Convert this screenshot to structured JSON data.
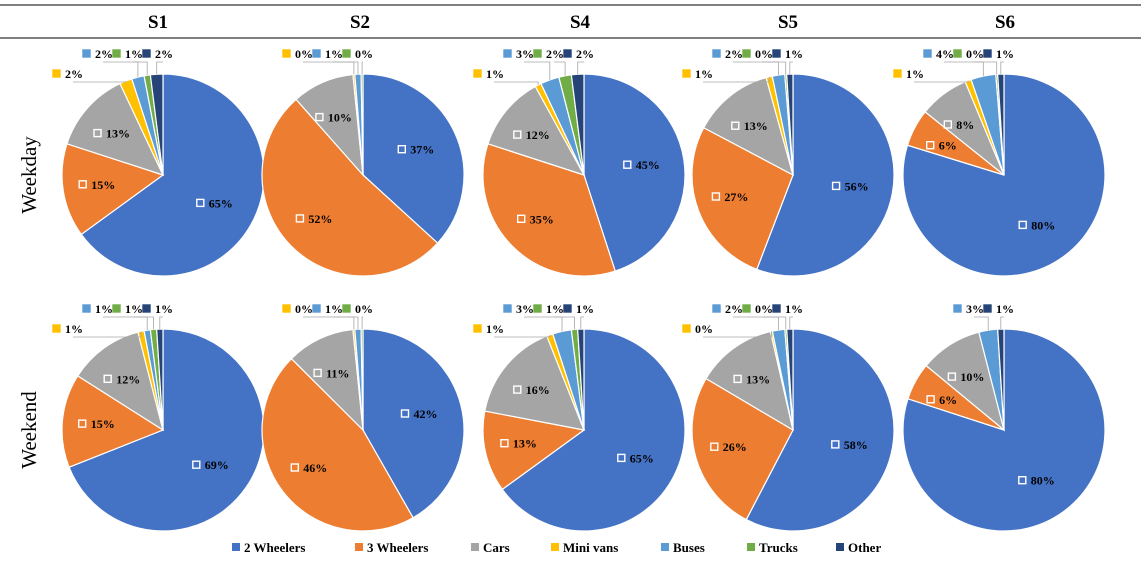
{
  "column_titles": [
    "S1",
    "S2",
    "S4",
    "S5",
    "S6"
  ],
  "row_titles": [
    "Weekday",
    "Weekend"
  ],
  "colors": {
    "2 Wheelers": "#4472C4",
    "3 Wheelers": "#ED7D31",
    "Cars": "#A5A5A5",
    "Mini vans": "#FFC000",
    "Buses": "#5B9BD5",
    "Trucks": "#70AD47",
    "Other": "#264478"
  },
  "legend": [
    "2 Wheelers",
    "3 Wheelers",
    "Cars",
    "Mini vans",
    "Buses",
    "Trucks",
    "Other"
  ],
  "chart_data": [
    {
      "type": "pie",
      "title": "S1",
      "row": "Weekday",
      "categories": [
        "2 Wheelers",
        "3 Wheelers",
        "Cars",
        "Mini vans",
        "Buses",
        "Trucks",
        "Other"
      ],
      "values": [
        65,
        15,
        13,
        2,
        2,
        1,
        2
      ],
      "labels": [
        "65%",
        "15%",
        "13%",
        "2%",
        "2%",
        "1%",
        "2%"
      ]
    },
    {
      "type": "pie",
      "title": "S2",
      "row": "Weekday",
      "categories": [
        "2 Wheelers",
        "3 Wheelers",
        "Cars",
        "Mini vans",
        "Buses",
        "Trucks",
        "Other"
      ],
      "values": [
        37,
        52,
        10,
        0.3,
        1,
        0.3,
        0
      ],
      "labels": [
        "37%",
        "52%",
        "10%",
        "0%",
        "1%",
        "0%",
        ""
      ]
    },
    {
      "type": "pie",
      "title": "S4",
      "row": "Weekday",
      "categories": [
        "2 Wheelers",
        "3 Wheelers",
        "Cars",
        "Mini vans",
        "Buses",
        "Trucks",
        "Other"
      ],
      "values": [
        45,
        35,
        12,
        1,
        3,
        2,
        2
      ],
      "labels": [
        "45%",
        "35%",
        "12%",
        "1%",
        "3%",
        "2%",
        "2%"
      ]
    },
    {
      "type": "pie",
      "title": "S5",
      "row": "Weekday",
      "categories": [
        "2 Wheelers",
        "3 Wheelers",
        "Cars",
        "Mini vans",
        "Buses",
        "Trucks",
        "Other"
      ],
      "values": [
        56,
        27,
        13,
        1,
        2,
        0.3,
        1
      ],
      "labels": [
        "56%",
        "27%",
        "13%",
        "1%",
        "2%",
        "0%",
        "1%"
      ]
    },
    {
      "type": "pie",
      "title": "S6",
      "row": "Weekday",
      "categories": [
        "2 Wheelers",
        "3 Wheelers",
        "Cars",
        "Mini vans",
        "Buses",
        "Trucks",
        "Other"
      ],
      "values": [
        80,
        6,
        8,
        1,
        4,
        0.3,
        1
      ],
      "labels": [
        "80%",
        "6%",
        "8%",
        "1%",
        "4%",
        "0%",
        "1%"
      ]
    },
    {
      "type": "pie",
      "title": "S1",
      "row": "Weekend",
      "categories": [
        "2 Wheelers",
        "3 Wheelers",
        "Cars",
        "Mini vans",
        "Buses",
        "Trucks",
        "Other"
      ],
      "values": [
        69,
        15,
        12,
        1,
        1,
        1,
        1
      ],
      "labels": [
        "69%",
        "15%",
        "12%",
        "1%",
        "1%",
        "1%",
        "1%"
      ]
    },
    {
      "type": "pie",
      "title": "S2",
      "row": "Weekend",
      "categories": [
        "2 Wheelers",
        "3 Wheelers",
        "Cars",
        "Mini vans",
        "Buses",
        "Trucks",
        "Other"
      ],
      "values": [
        42,
        46,
        11,
        0.3,
        1,
        0.3,
        0
      ],
      "labels": [
        "42%",
        "46%",
        "11%",
        "0%",
        "1%",
        "0%",
        ""
      ]
    },
    {
      "type": "pie",
      "title": "S4",
      "row": "Weekend",
      "categories": [
        "2 Wheelers",
        "3 Wheelers",
        "Cars",
        "Mini vans",
        "Buses",
        "Trucks",
        "Other"
      ],
      "values": [
        65,
        13,
        16,
        1,
        3,
        1,
        1
      ],
      "labels": [
        "65%",
        "13%",
        "16%",
        "1%",
        "3%",
        "1%",
        "1%"
      ]
    },
    {
      "type": "pie",
      "title": "S5",
      "row": "Weekend",
      "categories": [
        "2 Wheelers",
        "3 Wheelers",
        "Cars",
        "Mini vans",
        "Buses",
        "Trucks",
        "Other"
      ],
      "values": [
        58,
        26,
        13,
        0.3,
        2,
        0.3,
        1
      ],
      "labels": [
        "58%",
        "26%",
        "13%",
        "0%",
        "2%",
        "0%",
        "1%"
      ]
    },
    {
      "type": "pie",
      "title": "S6",
      "row": "Weekend",
      "categories": [
        "2 Wheelers",
        "3 Wheelers",
        "Cars",
        "Mini vans",
        "Buses",
        "Trucks",
        "Other"
      ],
      "values": [
        80,
        6,
        10,
        0,
        3,
        0,
        1
      ],
      "labels": [
        "80%",
        "6%",
        "10%",
        "",
        "3%",
        "",
        "1%"
      ]
    }
  ]
}
